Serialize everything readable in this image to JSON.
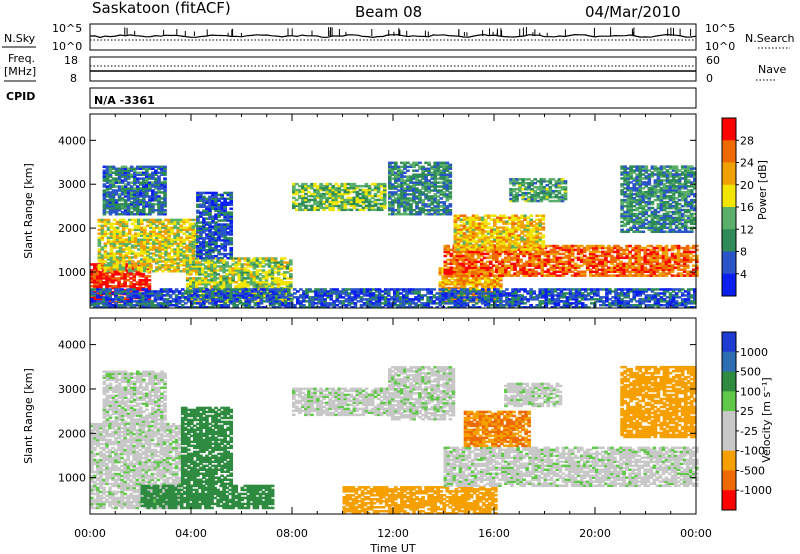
{
  "header": {
    "radar": "Saskatoon (fitACF)",
    "beam": "Beam 08",
    "date": "04/Mar/2010"
  },
  "param_panels": {
    "nsky_label": "N.Sky",
    "nsky_ticks": [
      "10^5",
      "10^0"
    ],
    "nsearch_label": "N.Search",
    "nsearch_ticks": [
      "10^5",
      "10^0"
    ],
    "freq_label_1": "Freq.",
    "freq_label_2": "[MHz]",
    "freq_ticks": [
      "18",
      "8"
    ],
    "nave_label": "Nave",
    "nave_ticks": [
      "60",
      "0"
    ],
    "cpid_label": "CPID",
    "cpid_value": "N/A -3361"
  },
  "colors": {
    "power": [
      "#0a1ef0",
      "#2a54c8",
      "#2e8b57",
      "#5aaf6a",
      "#f2e600",
      "#f0a000",
      "#ee6a00",
      "#ff0000"
    ],
    "velocity": [
      "#1e3cd2",
      "#2e6fb4",
      "#2e8b40",
      "#60c848",
      "#c8c8c8",
      "#c8c8c8",
      "#f5a000",
      "#ee6a00",
      "#ff0000"
    ]
  },
  "chart_data": [
    {
      "type": "heatmap",
      "title": "Power",
      "ylabel": "Slant Range [km]",
      "xlabel": "Time UT",
      "xlim": [
        "00:00",
        "00:00"
      ],
      "ylim": [
        180,
        4600
      ],
      "y_ticks": [
        "1000",
        "2000",
        "3000",
        "4000"
      ],
      "x_ticks": [
        "00:00",
        "04:00",
        "08:00",
        "12:00",
        "16:00",
        "20:00",
        "00:00"
      ],
      "colorbar": {
        "label": "Power [dB]",
        "ticks": [
          "28",
          "24",
          "20",
          "16",
          "12",
          "8",
          "4"
        ],
        "range": [
          0,
          32
        ]
      },
      "echo_regions": [
        {
          "t_start": 0.0,
          "t_end": 2.4,
          "r_min": 300,
          "r_max": 1200,
          "level": 30
        },
        {
          "t_start": 0.3,
          "t_end": 4.2,
          "r_min": 1000,
          "r_max": 2200,
          "level": 18
        },
        {
          "t_start": 0.5,
          "t_end": 3.0,
          "r_min": 2300,
          "r_max": 3400,
          "level": 8
        },
        {
          "t_start": 3.8,
          "t_end": 8.0,
          "r_min": 300,
          "r_max": 1300,
          "level": 16
        },
        {
          "t_start": 4.2,
          "t_end": 5.6,
          "r_min": 1300,
          "r_max": 2800,
          "level": 6
        },
        {
          "t_start": 8.0,
          "t_end": 11.6,
          "r_min": 2400,
          "r_max": 3000,
          "level": 14
        },
        {
          "t_start": 11.8,
          "t_end": 14.2,
          "r_min": 2300,
          "r_max": 3500,
          "level": 10
        },
        {
          "t_start": 13.8,
          "t_end": 16.2,
          "r_min": 300,
          "r_max": 1100,
          "level": 22
        },
        {
          "t_start": 14.0,
          "t_end": 24.0,
          "r_min": 900,
          "r_max": 1600,
          "level": 26
        },
        {
          "t_start": 14.4,
          "t_end": 18.0,
          "r_min": 1500,
          "r_max": 2300,
          "level": 20
        },
        {
          "t_start": 16.6,
          "t_end": 18.8,
          "r_min": 2600,
          "r_max": 3100,
          "level": 12
        },
        {
          "t_start": 21.0,
          "t_end": 24.0,
          "r_min": 1900,
          "r_max": 3400,
          "level": 10
        },
        {
          "t_start": 0.0,
          "t_end": 24.0,
          "r_min": 180,
          "r_max": 600,
          "level": 6
        }
      ]
    },
    {
      "type": "heatmap",
      "title": "Velocity",
      "ylabel": "Slant Range [km]",
      "xlabel": "Time UT",
      "xlim": [
        "00:00",
        "00:00"
      ],
      "ylim": [
        180,
        4600
      ],
      "y_ticks": [
        "1000",
        "2000",
        "3000",
        "4000"
      ],
      "x_ticks": [
        "00:00",
        "04:00",
        "08:00",
        "12:00",
        "16:00",
        "20:00",
        "00:00"
      ],
      "colorbar": {
        "label": "Velocity [m s⁻¹]",
        "ticks": [
          "1000",
          "500",
          "100",
          "25",
          "-25",
          "-100",
          "-500",
          "-1000"
        ],
        "range": [
          -1000,
          1000
        ]
      },
      "echo_regions": [
        {
          "t_start": 0.0,
          "t_end": 3.6,
          "r_min": 300,
          "r_max": 2200,
          "velocity": 0
        },
        {
          "t_start": 0.5,
          "t_end": 3.0,
          "r_min": 2200,
          "r_max": 3400,
          "velocity": 0
        },
        {
          "t_start": 2.0,
          "t_end": 7.2,
          "r_min": 300,
          "r_max": 800,
          "velocity": 200
        },
        {
          "t_start": 3.6,
          "t_end": 5.6,
          "r_min": 800,
          "r_max": 2600,
          "velocity": 150
        },
        {
          "t_start": 8.0,
          "t_end": 11.8,
          "r_min": 2400,
          "r_max": 3000,
          "velocity": 0
        },
        {
          "t_start": 11.8,
          "t_end": 14.4,
          "r_min": 2300,
          "r_max": 3500,
          "velocity": 0
        },
        {
          "t_start": 10.0,
          "t_end": 16.0,
          "r_min": 180,
          "r_max": 800,
          "velocity": -120
        },
        {
          "t_start": 14.0,
          "t_end": 24.0,
          "r_min": 800,
          "r_max": 1700,
          "velocity": 0
        },
        {
          "t_start": 14.8,
          "t_end": 17.4,
          "r_min": 1700,
          "r_max": 2500,
          "velocity": -300
        },
        {
          "t_start": 16.4,
          "t_end": 18.6,
          "r_min": 2600,
          "r_max": 3100,
          "velocity": 0
        },
        {
          "t_start": 21.0,
          "t_end": 24.0,
          "r_min": 1900,
          "r_max": 3500,
          "velocity": -150
        }
      ]
    }
  ]
}
